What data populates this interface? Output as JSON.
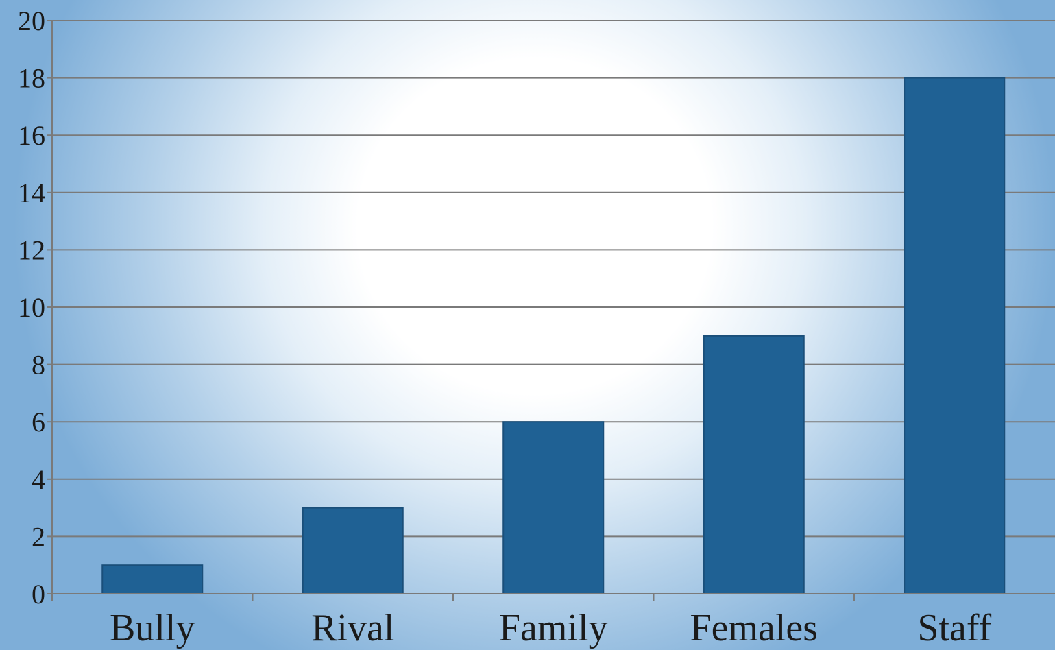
{
  "chart_data": {
    "type": "bar",
    "categories": [
      "Bully",
      "Rival",
      "Family",
      "Females",
      "Staff"
    ],
    "values": [
      1,
      3,
      6,
      9,
      18
    ],
    "ylim": [
      0,
      20
    ],
    "yticks": [
      "0",
      "2",
      "4",
      "6",
      "8",
      "10",
      "12",
      "14",
      "16",
      "18",
      "20"
    ],
    "grid": true,
    "bar_color": "#1f6194"
  }
}
